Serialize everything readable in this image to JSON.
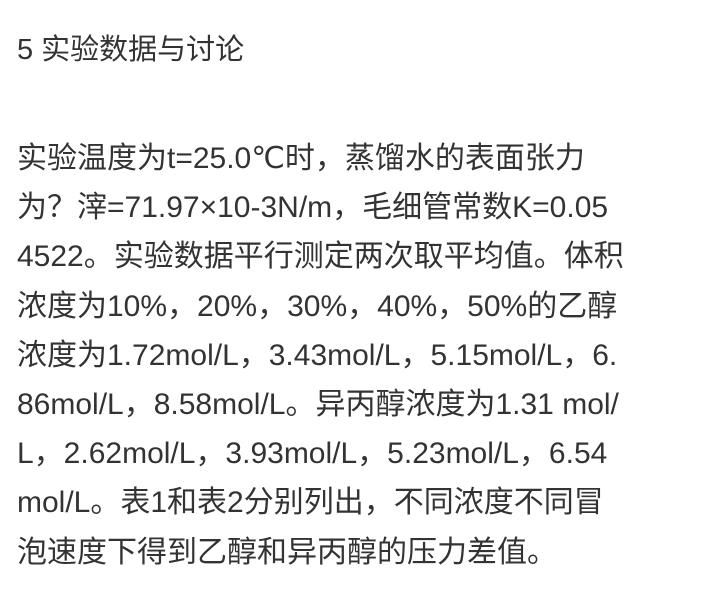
{
  "heading": "5 实验数据与讨论",
  "paragraph_lines": [
    "实验温度为t=25.0℃时，蒸馏水的表面张力",
    "为？滓=71.97×10-3N/m，毛细管常数K=0.05",
    "4522。实验数据平行测定两次取平均值。体积",
    "浓度为10%，20%，30%，40%，50%的乙醇",
    "浓度为1.72mol/L，3.43mol/L，5.15mol/L，6.",
    "86mol/L，8.58mol/L。异丙醇浓度为1.31 mol/",
    "L，2.62mol/L，3.93mol/L，5.23mol/L，6.54",
    "mol/L。表1和表2分别列出，不同浓度不同冒",
    "泡速度下得到乙醇和异丙醇的压力差值。"
  ]
}
